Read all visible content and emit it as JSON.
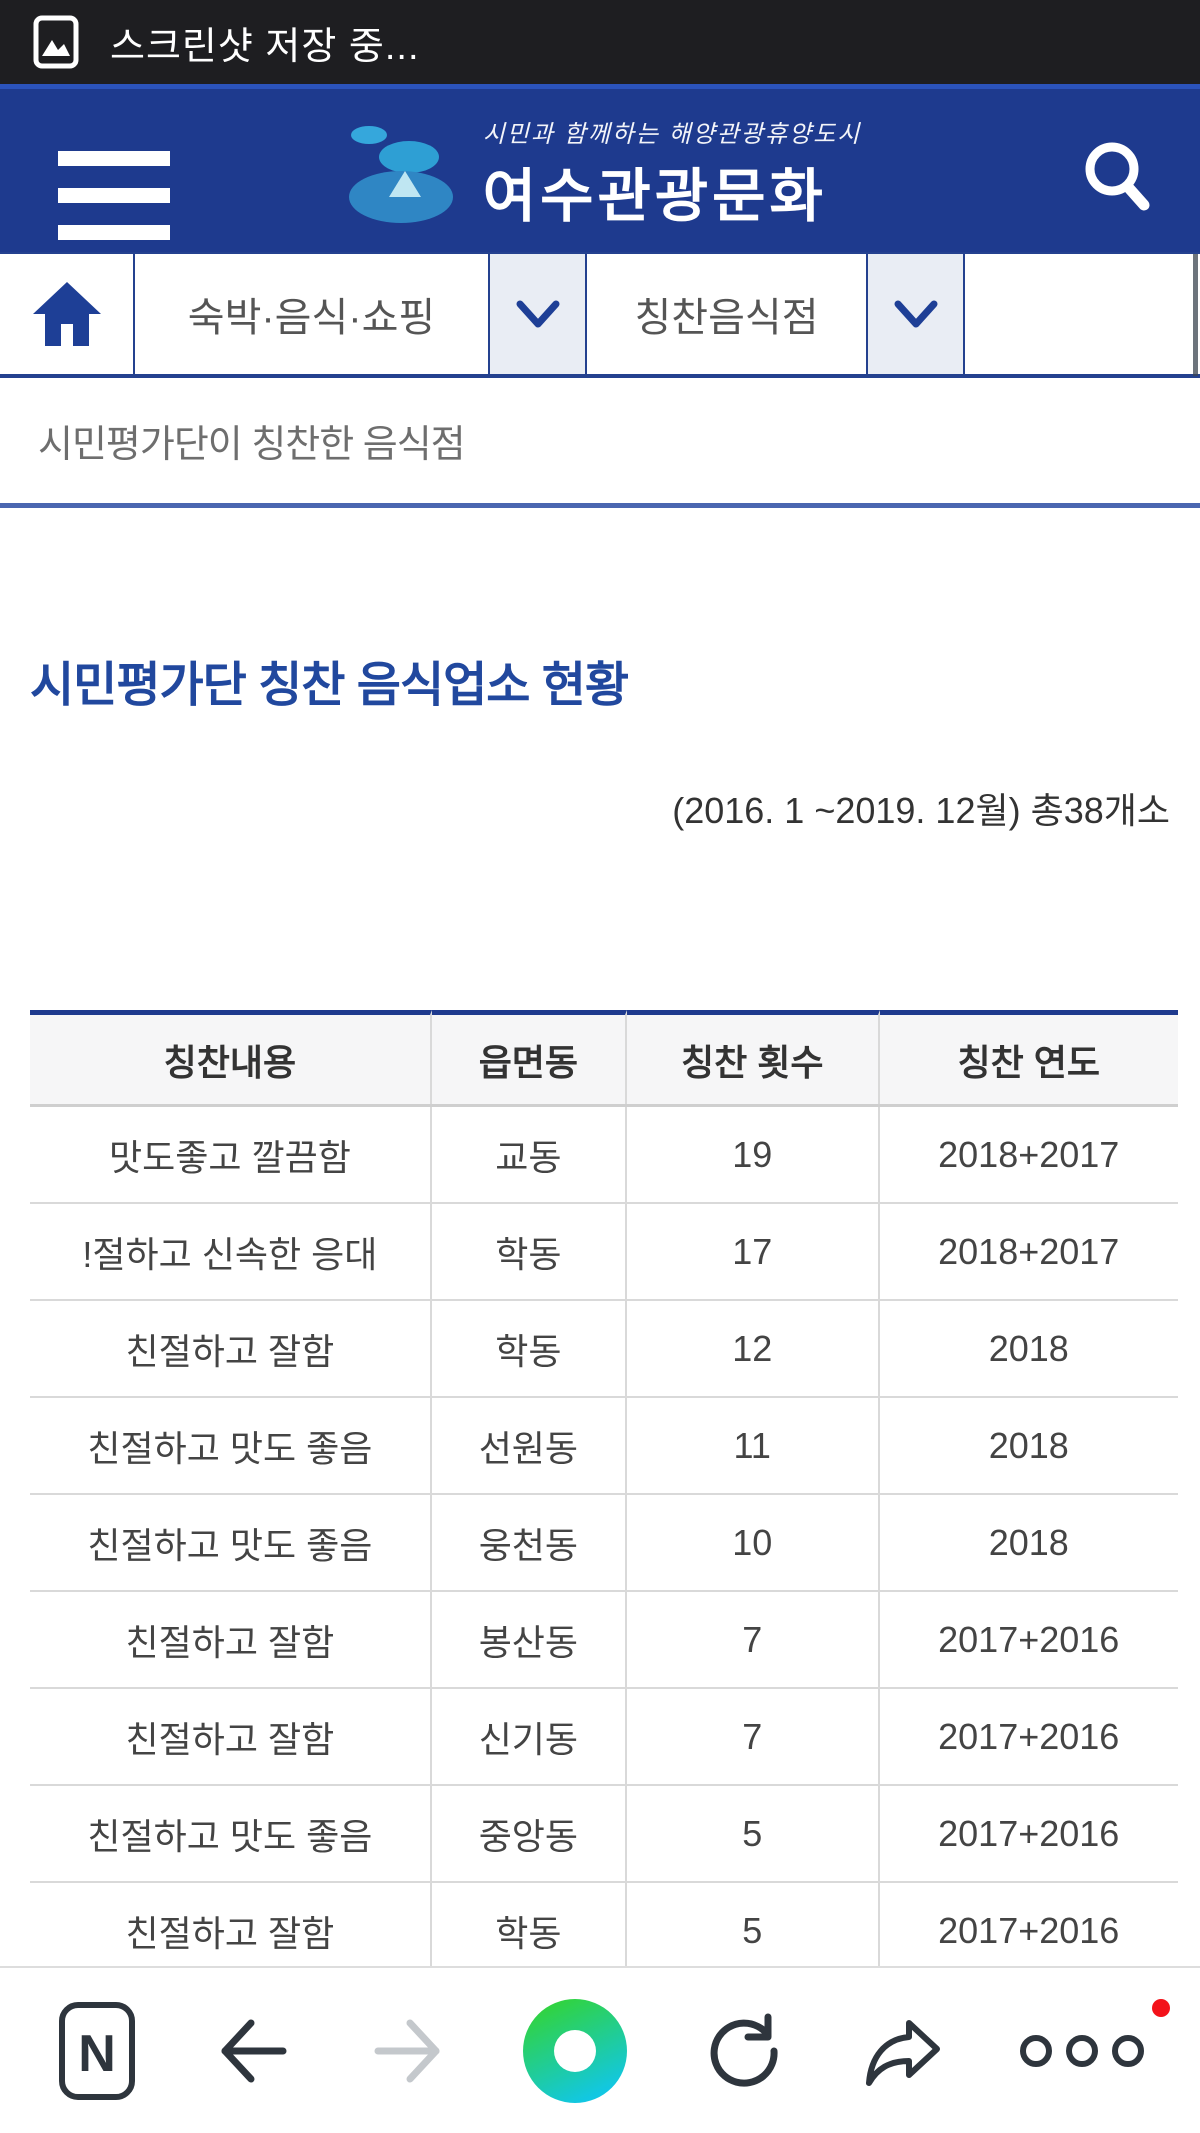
{
  "status_bar": {
    "text": "스크린샷 저장 중...",
    "icon": "image-icon",
    "bg": "#1e1e21"
  },
  "header": {
    "bg": "#1e3a8e",
    "tagline": "시민과 함께하는 해양관광휴양도시",
    "logo_text": "여수관광문화",
    "icons": [
      "hamburger-menu-icon",
      "search-icon"
    ]
  },
  "nav": {
    "home_icon": "home-icon",
    "menu1_label": "숙박·음식·쇼핑",
    "menu2_label": "칭찬음식점",
    "chevron_icon": "chevron-down-icon",
    "border_color": "#24418f"
  },
  "breadcrumb": {
    "title": "시민평가단이 칭찬한 음식점"
  },
  "content": {
    "heading": "시민평가단 칭찬 음식업소 현황",
    "heading_color": "#21489e",
    "subtitle": "(2016. 1 ~2019. 12월) 총38개소"
  },
  "table": {
    "headers": [
      "칭찬내용",
      "읍면동",
      "칭찬 횟수",
      "칭찬 연도"
    ],
    "rows": [
      [
        "맛도좋고 깔끔함",
        "교동",
        "19",
        "2018+2017"
      ],
      [
        "!절하고 신속한 응대",
        "학동",
        "17",
        "2018+2017"
      ],
      [
        "친절하고 잘함",
        "학동",
        "12",
        "2018"
      ],
      [
        "친절하고 맛도 좋음",
        "선원동",
        "11",
        "2018"
      ],
      [
        "친절하고 맛도 좋음",
        "웅천동",
        "10",
        "2018"
      ],
      [
        "친절하고 잘함",
        "봉산동",
        "7",
        "2017+2016"
      ],
      [
        "친절하고 잘함",
        "신기동",
        "7",
        "2017+2016"
      ],
      [
        "친절하고 맛도 좋음",
        "중앙동",
        "5",
        "2017+2016"
      ],
      [
        "친절하고 잘함",
        "학동",
        "5",
        "2017+2016"
      ]
    ],
    "accent_border": "#1e3a8e"
  },
  "toolbar": {
    "icons": [
      "naver-icon",
      "back-icon",
      "forward-icon",
      "home-dot-icon",
      "refresh-icon",
      "share-icon",
      "more-icon"
    ],
    "naver_letter": "N",
    "badge_color": "#f3121a",
    "green_dot_colors": [
      "#31d33f",
      "#12c7e2"
    ]
  }
}
